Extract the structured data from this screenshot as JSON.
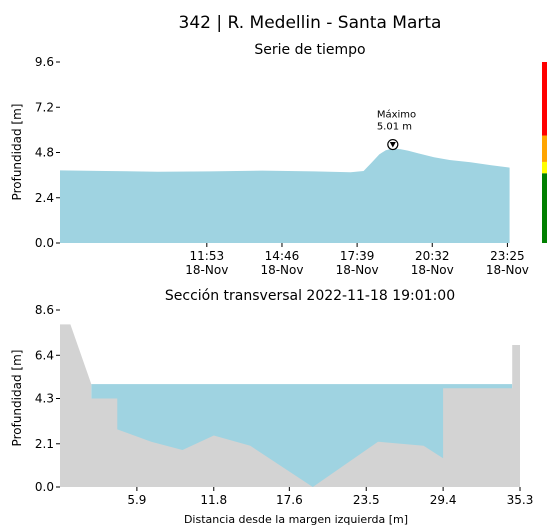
{
  "header": {
    "title": "342 | R. Medellin - Santa Marta"
  },
  "chart_data": [
    {
      "type": "area",
      "title": "Serie de tiempo",
      "ylabel": "Profundidad [m]",
      "xlabel": "",
      "ylim": [
        0,
        9.6
      ],
      "yticks": [
        "0.0",
        "2.4",
        "4.8",
        "7.2",
        "9.6"
      ],
      "xticks": [
        {
          "time": "11:53",
          "date": "18-Nov"
        },
        {
          "time": "14:46",
          "date": "18-Nov"
        },
        {
          "time": "17:39",
          "date": "18-Nov"
        },
        {
          "time": "20:32",
          "date": "18-Nov"
        },
        {
          "time": "23:25",
          "date": "18-Nov"
        }
      ],
      "x_hours": [
        6.25,
        8.0,
        10.0,
        12.0,
        14.0,
        16.0,
        17.4,
        17.9,
        18.2,
        18.5,
        18.75,
        19.02,
        19.3,
        19.6,
        20.0,
        20.6,
        21.2,
        22.0,
        22.8,
        23.5
      ],
      "series": [
        {
          "values": [
            3.85,
            3.82,
            3.78,
            3.8,
            3.84,
            3.8,
            3.75,
            3.82,
            4.25,
            4.7,
            4.92,
            5.01,
            4.98,
            4.9,
            4.75,
            4.55,
            4.4,
            4.28,
            4.12,
            4.0
          ]
        }
      ],
      "x_range_hours": [
        6.25,
        23.9
      ],
      "fill_color": "#9fd3e1",
      "annotation": {
        "label": "Máximo",
        "value": "5.01 m",
        "x_hours": 19.02,
        "y": 5.01
      },
      "alert_bar": {
        "ymax": 9.6,
        "segments": [
          {
            "from": 0,
            "to": 3.7,
            "color": "#008000"
          },
          {
            "from": 3.7,
            "to": 4.3,
            "color": "#ffff00"
          },
          {
            "from": 4.3,
            "to": 5.7,
            "color": "#ffa500"
          },
          {
            "from": 5.7,
            "to": 9.6,
            "color": "#ff0000"
          }
        ]
      }
    },
    {
      "type": "area",
      "title": "Sección transversal 2022-11-18 19:01:00",
      "ylabel": "Profundidad [m]",
      "xlabel": "Distancia desde la margen izquierda [m]",
      "ylim": [
        0,
        8.6
      ],
      "xlim": [
        0,
        35.3
      ],
      "yticks": [
        "0.0",
        "2.1",
        "4.3",
        "6.4",
        "8.6"
      ],
      "xticks": [
        "5.9",
        "11.8",
        "17.6",
        "23.5",
        "29.4",
        "35.3"
      ],
      "bed_profile": {
        "x": [
          0,
          0.8,
          2.4,
          2.4,
          4.4,
          4.4,
          7.0,
          9.4,
          11.8,
          14.6,
          19.4,
          24.4,
          27.9,
          29.4,
          29.4,
          34.7,
          34.7,
          35.3,
          35.3
        ],
        "y": [
          7.9,
          7.9,
          5.0,
          4.3,
          4.3,
          2.8,
          2.2,
          1.8,
          2.5,
          2.0,
          0.0,
          2.2,
          2.0,
          1.4,
          4.8,
          4.8,
          6.9,
          6.9,
          0.0
        ]
      },
      "water_level": 5.0,
      "water_color": "#9fd3e1",
      "bed_color": "#d3d3d3"
    }
  ]
}
